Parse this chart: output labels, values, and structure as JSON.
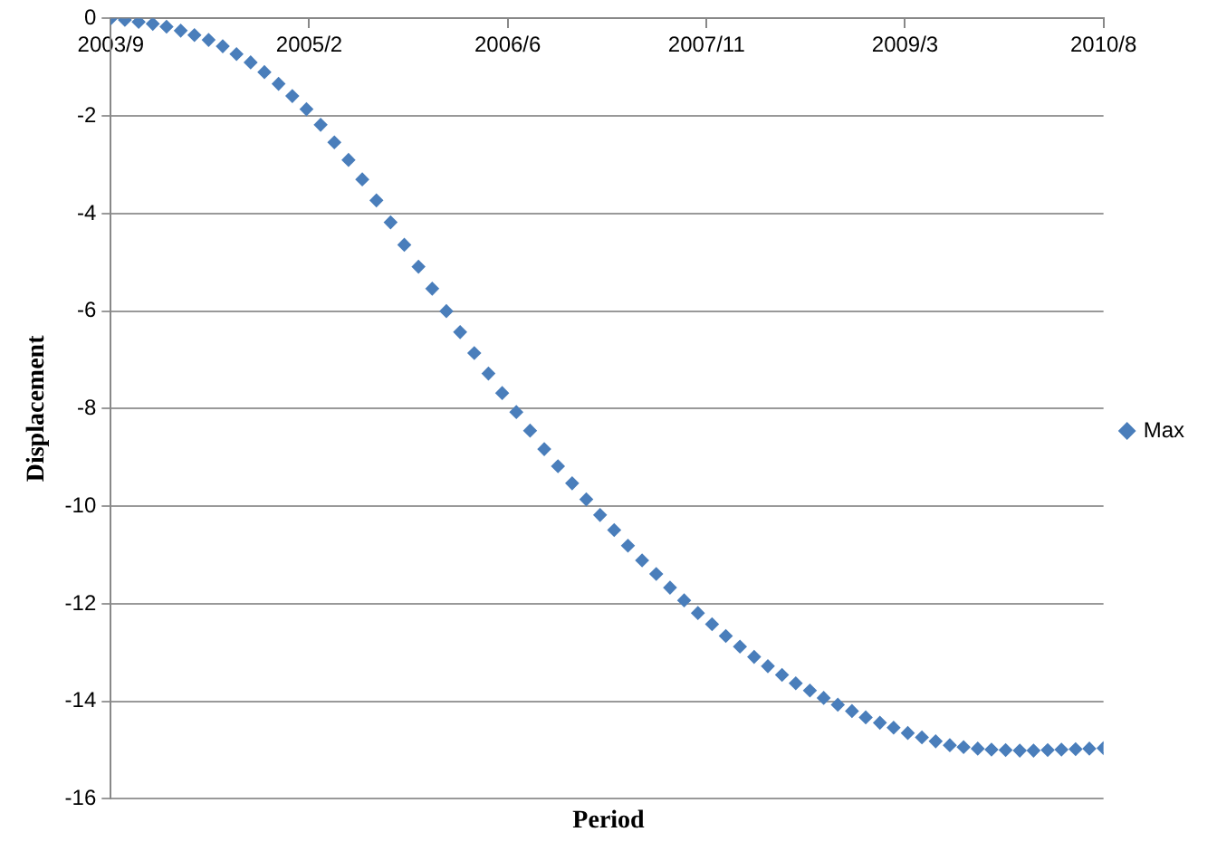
{
  "chart_data": {
    "type": "scatter",
    "xlabel": "Period",
    "ylabel": "Displacement",
    "x": [
      "2003-09-01",
      "2003-10-07",
      "2003-11-11",
      "2003-12-17",
      "2004-01-21",
      "2004-02-26",
      "2004-04-01",
      "2004-05-07",
      "2004-06-12",
      "2004-07-17",
      "2004-08-22",
      "2004-09-26",
      "2004-11-01",
      "2004-12-06",
      "2005-01-11",
      "2005-02-16",
      "2005-03-23",
      "2005-04-28",
      "2005-06-02",
      "2005-07-08",
      "2005-08-13",
      "2005-09-17",
      "2005-10-23",
      "2005-11-27",
      "2006-01-02",
      "2006-02-06",
      "2006-03-14",
      "2006-04-19",
      "2006-05-24",
      "2006-06-29",
      "2006-08-03",
      "2006-09-08",
      "2006-10-13",
      "2006-11-18",
      "2006-12-24",
      "2007-01-28",
      "2007-03-05",
      "2007-04-09",
      "2007-05-15",
      "2007-06-20",
      "2007-07-25",
      "2007-08-30",
      "2007-10-04",
      "2007-11-09",
      "2007-12-14",
      "2008-01-19",
      "2008-02-24",
      "2008-03-30",
      "2008-05-05",
      "2008-06-09",
      "2008-07-15",
      "2008-08-19",
      "2008-09-24",
      "2008-10-30",
      "2008-12-04",
      "2009-01-09",
      "2009-02-13",
      "2009-03-21",
      "2009-04-26",
      "2009-05-31",
      "2009-07-06",
      "2009-08-10",
      "2009-09-15",
      "2009-10-20",
      "2009-11-25",
      "2009-12-31",
      "2010-02-04",
      "2010-03-12",
      "2010-04-16",
      "2010-05-22",
      "2010-06-26",
      "2010-08-01"
    ],
    "series": [
      {
        "name": "Max",
        "color": "#4a7ebb",
        "values": [
          0,
          -0.03,
          -0.07,
          -0.11,
          -0.17,
          -0.25,
          -0.34,
          -0.44,
          -0.57,
          -0.73,
          -0.9,
          -1.1,
          -1.34,
          -1.59,
          -1.86,
          -2.18,
          -2.54,
          -2.9,
          -3.3,
          -3.73,
          -4.18,
          -4.64,
          -5.09,
          -5.54,
          -6.0,
          -6.43,
          -6.86,
          -7.28,
          -7.68,
          -8.07,
          -8.45,
          -8.83,
          -9.18,
          -9.53,
          -9.86,
          -10.18,
          -10.49,
          -10.81,
          -11.11,
          -11.39,
          -11.67,
          -11.93,
          -12.19,
          -12.42,
          -12.66,
          -12.88,
          -13.09,
          -13.28,
          -13.46,
          -13.63,
          -13.78,
          -13.93,
          -14.07,
          -14.2,
          -14.33,
          -14.44,
          -14.54,
          -14.65,
          -14.74,
          -14.82,
          -14.9,
          -14.94,
          -14.97,
          -14.99,
          -15.0,
          -15.01,
          -15.01,
          -15.0,
          -14.99,
          -14.98,
          -14.97,
          -14.96
        ]
      }
    ],
    "xlim": [
      "2003-09-01",
      "2010-08-01"
    ],
    "xticks": [
      {
        "value": "2003-09-01",
        "label": "2003/9"
      },
      {
        "value": "2005-01-18",
        "label": "2005/2"
      },
      {
        "value": "2006-06-07",
        "label": "2006/6"
      },
      {
        "value": "2007-10-26",
        "label": "2007/11"
      },
      {
        "value": "2009-03-14",
        "label": "2009/3"
      },
      {
        "value": "2010-08-01",
        "label": "2010/8"
      }
    ],
    "ylim": [
      -16,
      0
    ],
    "yticks": [
      0,
      -2,
      -4,
      -6,
      -8,
      -10,
      -12,
      -14,
      -16
    ],
    "grid": "y",
    "legend": "right",
    "marker": "diamond"
  }
}
